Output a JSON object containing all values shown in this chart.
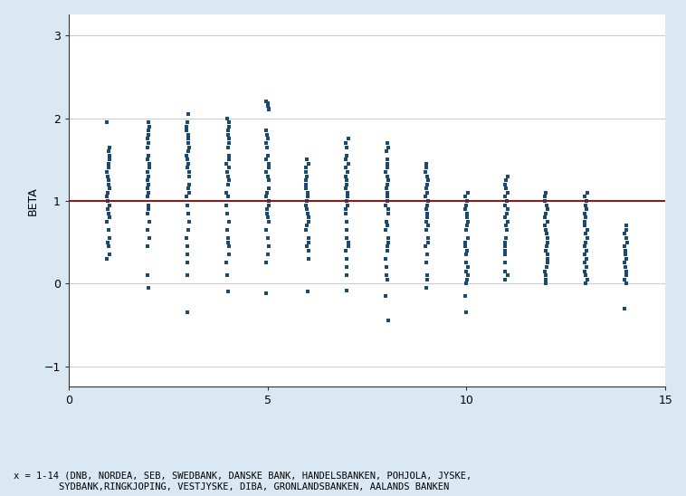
{
  "figure_bg": "#dae8f4",
  "plot_bg": "#ffffff",
  "dot_color": "#1a4a72",
  "line_color": "#8b1a1a",
  "ylabel": "BETA",
  "xlabel_note_line1": "x = 1-14 (DNB, NORDEA, SEB, SWEDBANK, DANSKE BANK, HANDELSBANKEN, POHJOLA, JYSKE,",
  "xlabel_note_line2": "        SYDBANK,RINGKJOPING, VESTJYSKE, DIBA, GRONLANDSBANKEN, AALANDS BANKEN",
  "xlim": [
    0,
    15
  ],
  "ylim": [
    -1.25,
    3.25
  ],
  "yticks": [
    -1,
    0,
    1,
    2,
    3
  ],
  "xticks": [
    0,
    5,
    10,
    15
  ],
  "hline_y": 1.0,
  "dot_size": 12,
  "jitter": 0.04,
  "bank_data": {
    "1": [
      1.95,
      1.65,
      1.6,
      1.55,
      1.5,
      1.45,
      1.4,
      1.35,
      1.3,
      1.25,
      1.2,
      1.15,
      1.1,
      1.05,
      1.0,
      0.95,
      0.9,
      0.85,
      0.8,
      0.75,
      0.65,
      0.55,
      0.5,
      0.45,
      0.35,
      0.3
    ],
    "2": [
      1.95,
      1.9,
      1.85,
      1.8,
      1.75,
      1.7,
      1.65,
      1.55,
      1.5,
      1.45,
      1.4,
      1.35,
      1.3,
      1.25,
      1.2,
      1.15,
      1.1,
      1.05,
      0.95,
      0.9,
      0.85,
      0.75,
      0.65,
      0.55,
      0.45,
      0.1,
      -0.05
    ],
    "3": [
      2.05,
      1.95,
      1.9,
      1.85,
      1.8,
      1.75,
      1.7,
      1.65,
      1.6,
      1.55,
      1.5,
      1.45,
      1.4,
      1.35,
      1.3,
      1.2,
      1.15,
      1.1,
      1.05,
      0.95,
      0.85,
      0.75,
      0.65,
      0.55,
      0.45,
      0.35,
      0.25,
      0.1,
      -0.35
    ],
    "4": [
      2.0,
      1.95,
      1.9,
      1.85,
      1.8,
      1.75,
      1.7,
      1.65,
      1.55,
      1.5,
      1.45,
      1.4,
      1.35,
      1.3,
      1.25,
      1.2,
      1.1,
      1.05,
      0.95,
      0.85,
      0.75,
      0.65,
      0.55,
      0.5,
      0.45,
      0.35,
      0.25,
      0.1,
      -0.1
    ],
    "5": [
      2.2,
      2.18,
      2.15,
      2.12,
      2.1,
      1.85,
      1.8,
      1.75,
      1.7,
      1.65,
      1.55,
      1.5,
      1.45,
      1.4,
      1.35,
      1.3,
      1.25,
      1.15,
      1.1,
      1.05,
      1.0,
      0.95,
      0.9,
      0.85,
      0.8,
      0.75,
      0.65,
      0.55,
      0.45,
      0.35,
      0.25,
      -0.12
    ],
    "6": [
      1.5,
      1.45,
      1.4,
      1.35,
      1.3,
      1.25,
      1.2,
      1.15,
      1.1,
      1.05,
      1.0,
      0.95,
      0.9,
      0.85,
      0.8,
      0.75,
      0.7,
      0.65,
      0.55,
      0.5,
      0.45,
      0.4,
      0.3,
      -0.1
    ],
    "7": [
      1.75,
      1.7,
      1.65,
      1.55,
      1.5,
      1.45,
      1.4,
      1.35,
      1.3,
      1.25,
      1.2,
      1.15,
      1.1,
      1.05,
      1.0,
      0.95,
      0.9,
      0.85,
      0.75,
      0.65,
      0.55,
      0.5,
      0.45,
      0.4,
      0.3,
      0.2,
      0.1,
      -0.08
    ],
    "8": [
      1.7,
      1.65,
      1.6,
      1.5,
      1.45,
      1.4,
      1.35,
      1.3,
      1.25,
      1.2,
      1.15,
      1.1,
      1.05,
      1.0,
      0.95,
      0.9,
      0.85,
      0.75,
      0.7,
      0.65,
      0.55,
      0.5,
      0.45,
      0.4,
      0.3,
      0.2,
      0.1,
      0.05,
      -0.15,
      -0.45
    ],
    "9": [
      1.45,
      1.4,
      1.35,
      1.3,
      1.25,
      1.2,
      1.15,
      1.1,
      1.05,
      1.0,
      0.95,
      0.9,
      0.85,
      0.8,
      0.75,
      0.7,
      0.65,
      0.55,
      0.5,
      0.45,
      0.35,
      0.25,
      0.1,
      0.05,
      -0.05
    ],
    "10": [
      1.1,
      1.05,
      1.0,
      0.95,
      0.9,
      0.85,
      0.8,
      0.75,
      0.7,
      0.65,
      0.55,
      0.5,
      0.45,
      0.4,
      0.35,
      0.25,
      0.2,
      0.15,
      0.1,
      0.05,
      0.0,
      -0.15,
      -0.35
    ],
    "11": [
      1.3,
      1.25,
      1.2,
      1.15,
      1.1,
      1.05,
      1.0,
      0.95,
      0.9,
      0.85,
      0.8,
      0.75,
      0.7,
      0.65,
      0.55,
      0.5,
      0.45,
      0.4,
      0.35,
      0.25,
      0.15,
      0.1,
      0.05
    ],
    "12": [
      1.1,
      1.05,
      1.0,
      0.95,
      0.9,
      0.85,
      0.8,
      0.75,
      0.7,
      0.65,
      0.6,
      0.55,
      0.5,
      0.45,
      0.4,
      0.35,
      0.3,
      0.25,
      0.2,
      0.15,
      0.1,
      0.05,
      0.0
    ],
    "13": [
      1.1,
      1.05,
      1.0,
      0.95,
      0.9,
      0.85,
      0.8,
      0.75,
      0.7,
      0.65,
      0.6,
      0.55,
      0.5,
      0.45,
      0.4,
      0.35,
      0.3,
      0.25,
      0.2,
      0.15,
      0.1,
      0.05,
      0.0
    ],
    "14": [
      0.7,
      0.65,
      0.6,
      0.55,
      0.5,
      0.45,
      0.4,
      0.35,
      0.3,
      0.25,
      0.2,
      0.15,
      0.1,
      0.05,
      0.0,
      -0.3
    ]
  }
}
